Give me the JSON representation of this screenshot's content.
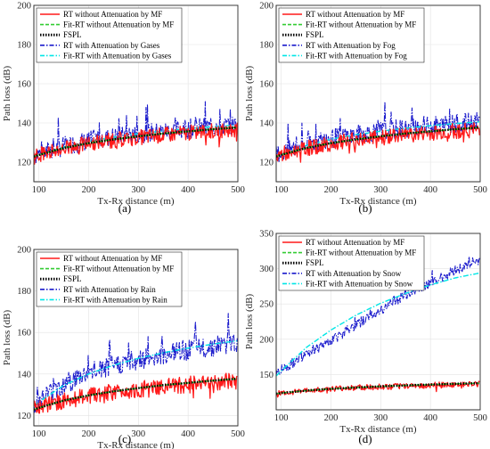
{
  "colors": {
    "rt_no_att": "#ff1a1a",
    "fit_rt_no_att": "#33cc33",
    "fspl": "#000000",
    "rt_att": "#1a1acc",
    "fit_rt_att": "#00e6e6"
  },
  "chart_data": [
    {
      "type": "line",
      "caption": "(a)",
      "xlabel": "Tx-Rx distance (m)",
      "ylabel": "Path loss (dB)",
      "xlim": [
        90,
        500
      ],
      "ylim": [
        110,
        200
      ],
      "xticks": [
        100,
        200,
        300,
        400,
        500
      ],
      "yticks": [
        120,
        140,
        160,
        180,
        200
      ],
      "grid": true,
      "legend_position": "top-left",
      "x": [
        90,
        100,
        150,
        200,
        250,
        300,
        350,
        400,
        450,
        500
      ],
      "series": [
        {
          "name": "RT without Attenuation by MF",
          "style": "solid",
          "color_key": "rt_no_att",
          "values": [
            122.8,
            124.0,
            127.0,
            129.5,
            131.3,
            132.6,
            133.8,
            134.9,
            135.9,
            136.7
          ]
        },
        {
          "name": "Fit-RT without Attenuation by MF",
          "style": "dashed",
          "color_key": "fit_rt_no_att",
          "values": [
            122.8,
            123.7,
            127.2,
            129.7,
            131.6,
            133.2,
            134.6,
            135.7,
            136.8,
            137.7
          ]
        },
        {
          "name": "FSPL",
          "style": "dotted",
          "color_key": "fspl",
          "values": [
            122.8,
            123.7,
            127.2,
            129.7,
            131.6,
            133.2,
            134.6,
            135.7,
            136.8,
            137.7
          ]
        },
        {
          "name": "RT with Attenuation by Gases",
          "style": "dashdot",
          "color_key": "rt_att",
          "values": [
            123.5,
            124.5,
            128.0,
            131.0,
            133.0,
            134.5,
            135.8,
            137.0,
            138.0,
            139.0
          ]
        },
        {
          "name": "Fit-RT with Attenuation by Gases",
          "style": "dashdot",
          "color_key": "fit_rt_att",
          "values": [
            122.5,
            123.8,
            127.8,
            130.6,
            132.8,
            134.5,
            135.9,
            137.1,
            138.1,
            139.0
          ]
        }
      ]
    },
    {
      "type": "line",
      "caption": "(b)",
      "xlabel": "Tx-Rx distance (m)",
      "ylabel": "Path loss (dB)",
      "xlim": [
        90,
        500
      ],
      "ylim": [
        110,
        200
      ],
      "xticks": [
        100,
        200,
        300,
        400,
        500
      ],
      "yticks": [
        120,
        140,
        160,
        180,
        200
      ],
      "grid": true,
      "legend_position": "top-left",
      "x": [
        90,
        100,
        150,
        200,
        250,
        300,
        350,
        400,
        450,
        500
      ],
      "series": [
        {
          "name": "RT without Attenuation by MF",
          "style": "solid",
          "color_key": "rt_no_att",
          "values": [
            122.8,
            124.0,
            127.0,
            129.5,
            131.3,
            132.6,
            133.8,
            134.9,
            135.9,
            136.7
          ]
        },
        {
          "name": "Fit-RT without Attenuation by MF",
          "style": "dashed",
          "color_key": "fit_rt_no_att",
          "values": [
            122.8,
            123.7,
            127.2,
            129.7,
            131.6,
            133.2,
            134.6,
            135.7,
            136.8,
            137.7
          ]
        },
        {
          "name": "FSPL",
          "style": "dotted",
          "color_key": "fspl",
          "values": [
            122.8,
            123.7,
            127.2,
            129.7,
            131.6,
            133.2,
            134.6,
            135.7,
            136.8,
            137.7
          ]
        },
        {
          "name": "RT with Attenuation by Fog",
          "style": "dashdot",
          "color_key": "rt_att",
          "values": [
            124.0,
            125.0,
            129.0,
            132.0,
            134.0,
            135.8,
            137.2,
            138.5,
            139.6,
            140.5
          ]
        },
        {
          "name": "Fit-RT with Attenuation by Fog",
          "style": "dashdot",
          "color_key": "fit_rt_att",
          "values": [
            122.8,
            124.0,
            128.5,
            131.7,
            134.0,
            135.8,
            137.3,
            138.6,
            139.7,
            140.6
          ]
        }
      ]
    },
    {
      "type": "line",
      "caption": "(c)",
      "xlabel": "Tx-Rx distance (m)",
      "ylabel": "Path loss (dB)",
      "xlim": [
        90,
        500
      ],
      "ylim": [
        115,
        200
      ],
      "xticks": [
        100,
        200,
        300,
        400,
        500
      ],
      "yticks": [
        120,
        140,
        160,
        180,
        200
      ],
      "grid": true,
      "legend_position": "top-left",
      "x": [
        90,
        100,
        150,
        200,
        250,
        300,
        350,
        400,
        450,
        500
      ],
      "series": [
        {
          "name": "RT without Attenuation by MF",
          "style": "solid",
          "color_key": "rt_no_att",
          "values": [
            122.8,
            124.0,
            127.0,
            129.5,
            131.3,
            132.6,
            133.8,
            134.9,
            135.9,
            136.7
          ]
        },
        {
          "name": "Fit-RT without Attenuation by MF",
          "style": "dashed",
          "color_key": "fit_rt_no_att",
          "values": [
            122.8,
            123.7,
            127.2,
            129.7,
            131.6,
            133.2,
            134.6,
            135.7,
            136.8,
            137.7
          ]
        },
        {
          "name": "FSPL",
          "style": "dotted",
          "color_key": "fspl",
          "values": [
            122.8,
            123.7,
            127.2,
            129.7,
            131.6,
            133.2,
            134.6,
            135.7,
            136.8,
            137.7
          ]
        },
        {
          "name": "RT with Attenuation by Rain",
          "style": "dashdot",
          "color_key": "rt_att",
          "values": [
            126.0,
            127.5,
            135.0,
            140.5,
            144.0,
            147.0,
            149.5,
            151.5,
            153.5,
            155.5
          ]
        },
        {
          "name": "Fit-RT with Attenuation by Rain",
          "style": "dashdot",
          "color_key": "fit_rt_att",
          "values": [
            124.5,
            126.5,
            134.5,
            140.0,
            144.2,
            147.5,
            150.2,
            152.5,
            154.4,
            156.0
          ]
        }
      ]
    },
    {
      "type": "line",
      "caption": "(d)",
      "xlabel": "Tx-Rx distance (m)",
      "ylabel": "Path loss (dB)",
      "xlim": [
        90,
        500
      ],
      "ylim": [
        100,
        350
      ],
      "xticks": [
        100,
        200,
        300,
        400,
        500
      ],
      "yticks": [
        150,
        200,
        250,
        300,
        350
      ],
      "grid": true,
      "legend_position": "top-left",
      "x": [
        90,
        100,
        150,
        200,
        250,
        300,
        350,
        400,
        450,
        500
      ],
      "series": [
        {
          "name": "RT without Attenuation by MF",
          "style": "solid",
          "color_key": "rt_no_att",
          "values": [
            122.8,
            124.0,
            127.0,
            129.5,
            131.3,
            132.6,
            133.8,
            134.9,
            135.9,
            136.7
          ]
        },
        {
          "name": "Fit-RT without Attenuation by MF",
          "style": "dashed",
          "color_key": "fit_rt_no_att",
          "values": [
            122.8,
            123.7,
            127.2,
            129.7,
            131.6,
            133.2,
            134.6,
            135.7,
            136.8,
            137.7
          ]
        },
        {
          "name": "FSPL",
          "style": "dotted",
          "color_key": "fspl",
          "values": [
            122.8,
            123.7,
            127.2,
            129.7,
            131.6,
            133.2,
            134.6,
            135.7,
            136.8,
            137.7
          ]
        },
        {
          "name": "RT with Attenuation by Snow",
          "style": "dashdot",
          "color_key": "rt_att",
          "values": [
            152,
            157,
            178,
            198,
            220,
            242,
            262,
            280,
            298,
            312
          ]
        },
        {
          "name": "Fit-RT with Attenuation by Snow",
          "style": "dashdot",
          "color_key": "fit_rt_att",
          "values": [
            148,
            155,
            188,
            213,
            234,
            251,
            265,
            277,
            287,
            294
          ]
        }
      ]
    }
  ]
}
